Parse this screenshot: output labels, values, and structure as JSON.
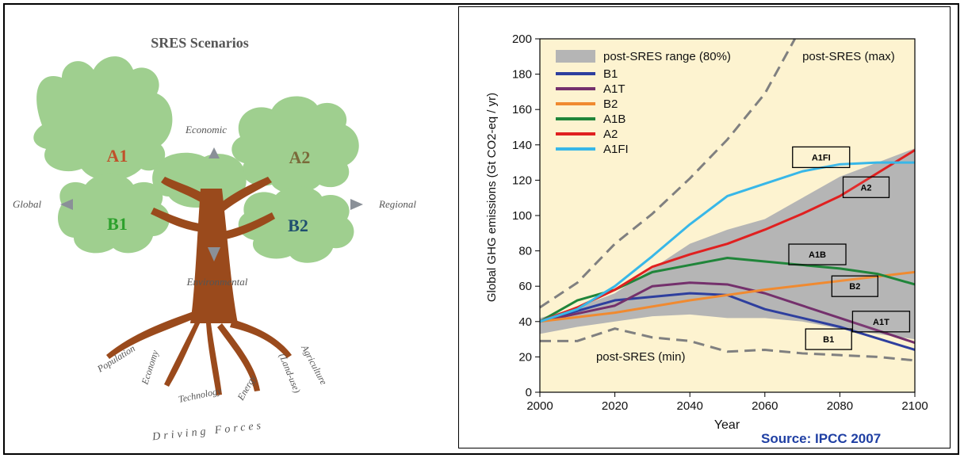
{
  "tree": {
    "title": "SRES Scenarios",
    "labels": {
      "a1": "A1",
      "a2": "A2",
      "b1": "B1",
      "b2": "B2",
      "economic": "Economic",
      "environmental": "Environmental",
      "global": "Global",
      "regional": "Regional"
    },
    "roots": [
      "Population",
      "Economy",
      "Technology",
      "Energy",
      "Agriculture",
      "(Land-use)"
    ],
    "footer": "Driving Forces",
    "colors": {
      "foliage": "#9fcf8f",
      "trunk": "#9a4a1c",
      "a1": "#c0512a",
      "a2": "#7a6a3a",
      "b1": "#2ca02c",
      "b2": "#1f4f6f",
      "arrow": "#8a9098"
    }
  },
  "chart_data": {
    "type": "line",
    "title": "",
    "xlabel": "Year",
    "ylabel": "Global GHG emissions (Gt CO2-eq / yr)",
    "xlim": [
      2000,
      2100
    ],
    "ylim": [
      0,
      200
    ],
    "xticks": [
      2000,
      2020,
      2040,
      2060,
      2080,
      2100
    ],
    "yticks": [
      0,
      20,
      40,
      60,
      80,
      100,
      120,
      140,
      160,
      180,
      200
    ],
    "background": "#fdf3d0",
    "grid": false,
    "legend_position": "top-left",
    "band": {
      "name": "post-SRES range (80%)",
      "color": "#b5b5b5",
      "x": [
        2000,
        2010,
        2020,
        2030,
        2040,
        2050,
        2060,
        2070,
        2080,
        2090,
        2100
      ],
      "upper": [
        42,
        48,
        56,
        70,
        84,
        92,
        98,
        110,
        122,
        130,
        138
      ],
      "lower": [
        33,
        37,
        40,
        43,
        44,
        42,
        42,
        40,
        36,
        33,
        30
      ]
    },
    "series": [
      {
        "name": "B1",
        "color": "#2e3f9e",
        "x": [
          2000,
          2020,
          2040,
          2050,
          2060,
          2080,
          2100
        ],
        "values": [
          40,
          52,
          56,
          55,
          47,
          37,
          24
        ]
      },
      {
        "name": "A1T",
        "color": "#74306c",
        "x": [
          2000,
          2020,
          2030,
          2040,
          2050,
          2060,
          2080,
          2100
        ],
        "values": [
          40,
          49,
          60,
          62,
          61,
          56,
          42,
          28
        ]
      },
      {
        "name": "B2",
        "color": "#f08a30",
        "x": [
          2000,
          2020,
          2040,
          2060,
          2080,
          2100
        ],
        "values": [
          40,
          45,
          52,
          58,
          63,
          68
        ]
      },
      {
        "name": "A1B",
        "color": "#20853a",
        "x": [
          2000,
          2010,
          2020,
          2030,
          2040,
          2050,
          2060,
          2070,
          2080,
          2090,
          2100
        ],
        "values": [
          40,
          52,
          58,
          68,
          72,
          76,
          74,
          72,
          70,
          67,
          61
        ]
      },
      {
        "name": "A2",
        "color": "#e02020",
        "x": [
          2000,
          2010,
          2020,
          2030,
          2040,
          2050,
          2060,
          2070,
          2080,
          2090,
          2100
        ],
        "values": [
          40,
          48,
          58,
          71,
          78,
          84,
          92,
          101,
          111,
          124,
          137
        ]
      },
      {
        "name": "A1FI",
        "color": "#38b7e8",
        "x": [
          2000,
          2010,
          2020,
          2030,
          2040,
          2050,
          2060,
          2070,
          2080,
          2090,
          2100
        ],
        "values": [
          40,
          47,
          60,
          77,
          95,
          111,
          118,
          125,
          129,
          130,
          130
        ]
      }
    ],
    "dashed": [
      {
        "name": "post-SRES (max)",
        "color": "#808080",
        "x": [
          2000,
          2010,
          2020,
          2030,
          2040,
          2050,
          2060,
          2068
        ],
        "values": [
          48,
          62,
          84,
          101,
          121,
          143,
          169,
          200
        ]
      },
      {
        "name": "post-SRES (min)",
        "color": "#808080",
        "x": [
          2000,
          2010,
          2020,
          2030,
          2040,
          2050,
          2060,
          2070,
          2080,
          2090,
          2100
        ],
        "values": [
          29,
          29,
          36,
          31,
          29,
          23,
          24,
          22,
          21,
          20,
          18
        ]
      }
    ],
    "annotations": [
      {
        "text": "A1FI",
        "x": 2075,
        "y": 133
      },
      {
        "text": "A2",
        "x": 2087,
        "y": 116
      },
      {
        "text": "A1B",
        "x": 2074,
        "y": 78
      },
      {
        "text": "B2",
        "x": 2084,
        "y": 60
      },
      {
        "text": "A1T",
        "x": 2091,
        "y": 40
      },
      {
        "text": "B1",
        "x": 2077,
        "y": 30
      }
    ],
    "dashed_labels": [
      {
        "text": "post-SRES (max)",
        "x": 2070,
        "y": 188
      },
      {
        "text": "post-SRES (min)",
        "x": 2015,
        "y": 18
      }
    ]
  },
  "source": "Source: IPCC 2007"
}
